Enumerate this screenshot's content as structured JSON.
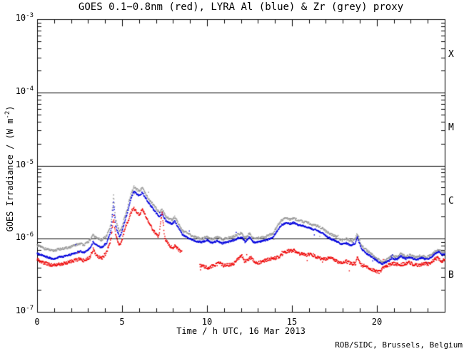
{
  "credit": "ROB/SIDC, Brussels, Belgium",
  "flare_classes": [
    "X",
    "M",
    "C",
    "B"
  ],
  "axes": {
    "x": {
      "title": "Time / h UTC, 16 Mar 2013",
      "tick_labels": [
        "0",
        "5",
        "10",
        "15",
        "20"
      ]
    },
    "y": {
      "title_pre": "GOES Irradiance / (W m",
      "title_sup": "-2",
      "title_post": ")",
      "ticks": [
        {
          "base": "10",
          "exp": "-3"
        },
        {
          "base": "10",
          "exp": "-4"
        },
        {
          "base": "10",
          "exp": "-5"
        },
        {
          "base": "10",
          "exp": "-6"
        },
        {
          "base": "10",
          "exp": "-7"
        }
      ]
    }
  },
  "chart_data": {
    "type": "scatter",
    "title": "GOES 0.1−0.8nm (red), LYRA Al (blue) & Zr (grey) proxy",
    "xlabel": "Time / h UTC, 16 Mar 2013",
    "ylabel": "GOES Irradiance / (W m-2)",
    "xlim": [
      0,
      24
    ],
    "ylim": [
      1e-07,
      0.001
    ],
    "y_scale": "log",
    "x_major_ticks": [
      0,
      5,
      10,
      15,
      20
    ],
    "x_minor_step": 1,
    "y_decade_ticks": [
      -3,
      -4,
      -5,
      -6,
      -7
    ],
    "hlines": [
      0.0001,
      1e-05,
      1e-06
    ],
    "flare_class_bands": [
      {
        "label": "X",
        "above": 0.0001
      },
      {
        "label": "M",
        "above": 1e-05
      },
      {
        "label": "C",
        "above": 1e-06
      },
      {
        "label": "B",
        "above": 1e-07
      }
    ],
    "axis_color": "#000000",
    "background": "#ffffff",
    "legend": "encoded in title colors",
    "series": [
      {
        "name": "GOES 0.1-0.8nm",
        "color": "#ee0000",
        "scatter_decades": 0.022,
        "gaps": [
          [
            8.52,
            9.56
          ]
        ],
        "keypoints": [
          [
            0.0,
            5.2e-07
          ],
          [
            0.4,
            4.7e-07
          ],
          [
            0.9,
            4.3e-07
          ],
          [
            1.3,
            4.5e-07
          ],
          [
            1.7,
            4.6e-07
          ],
          [
            2.1,
            5e-07
          ],
          [
            2.5,
            5.3e-07
          ],
          [
            2.8,
            5e-07
          ],
          [
            3.1,
            5.6e-07
          ],
          [
            3.3,
            7.2e-07
          ],
          [
            3.5,
            5.8e-07
          ],
          [
            3.8,
            5.4e-07
          ],
          [
            4.1,
            6.5e-07
          ],
          [
            4.35,
            1e-06
          ],
          [
            4.5,
            2e-06
          ],
          [
            4.62,
            1.1e-06
          ],
          [
            4.85,
            8.2e-07
          ],
          [
            5.0,
            9.5e-07
          ],
          [
            5.15,
            1.35e-06
          ],
          [
            5.3,
            1.6e-06
          ],
          [
            5.5,
            2.2e-06
          ],
          [
            5.67,
            2.65e-06
          ],
          [
            5.85,
            2.4e-06
          ],
          [
            6.0,
            2.1e-06
          ],
          [
            6.2,
            2.5e-06
          ],
          [
            6.35,
            2.1e-06
          ],
          [
            6.6,
            1.6e-06
          ],
          [
            6.8,
            1.35e-06
          ],
          [
            7.0,
            1.15e-06
          ],
          [
            7.15,
            1.05e-06
          ],
          [
            7.36,
            2.3e-06
          ],
          [
            7.5,
            1.05e-06
          ],
          [
            7.65,
            9e-07
          ],
          [
            7.8,
            8e-07
          ],
          [
            8.0,
            7.6e-07
          ],
          [
            8.15,
            7.9e-07
          ],
          [
            8.3,
            7.2e-07
          ],
          [
            8.52,
            6.6e-07
          ],
          [
            9.56,
            4.3e-07
          ],
          [
            9.8,
            4.2e-07
          ],
          [
            10.1,
            4e-07
          ],
          [
            10.4,
            4.3e-07
          ],
          [
            10.7,
            4.7e-07
          ],
          [
            11.0,
            4.3e-07
          ],
          [
            11.3,
            4.4e-07
          ],
          [
            11.6,
            4.6e-07
          ],
          [
            11.85,
            5.4e-07
          ],
          [
            12.05,
            5.9e-07
          ],
          [
            12.2,
            4.9e-07
          ],
          [
            12.45,
            5.2e-07
          ],
          [
            12.6,
            5.6e-07
          ],
          [
            12.8,
            4.7e-07
          ],
          [
            13.1,
            4.7e-07
          ],
          [
            13.4,
            5e-07
          ],
          [
            13.7,
            5.3e-07
          ],
          [
            14.0,
            5.4e-07
          ],
          [
            14.3,
            5.8e-07
          ],
          [
            14.6,
            6.6e-07
          ],
          [
            14.9,
            6.9e-07
          ],
          [
            15.2,
            6.8e-07
          ],
          [
            15.5,
            6.2e-07
          ],
          [
            15.8,
            6e-07
          ],
          [
            16.1,
            6.2e-07
          ],
          [
            16.4,
            5.7e-07
          ],
          [
            16.7,
            5.4e-07
          ],
          [
            17.0,
            5.3e-07
          ],
          [
            17.3,
            5.6e-07
          ],
          [
            17.6,
            5e-07
          ],
          [
            17.9,
            4.7e-07
          ],
          [
            18.2,
            4.9e-07
          ],
          [
            18.5,
            4.6e-07
          ],
          [
            18.75,
            4.5e-07
          ],
          [
            18.85,
            5.7e-07
          ],
          [
            19.05,
            4.4e-07
          ],
          [
            19.3,
            4.2e-07
          ],
          [
            19.6,
            3.9e-07
          ],
          [
            19.9,
            3.6e-07
          ],
          [
            20.15,
            3.5e-07
          ],
          [
            20.4,
            4e-07
          ],
          [
            20.7,
            4.4e-07
          ],
          [
            21.0,
            4.6e-07
          ],
          [
            21.3,
            4.4e-07
          ],
          [
            21.6,
            4.5e-07
          ],
          [
            21.9,
            4.7e-07
          ],
          [
            22.2,
            4.4e-07
          ],
          [
            22.5,
            4.3e-07
          ],
          [
            22.8,
            4.6e-07
          ],
          [
            23.1,
            4.5e-07
          ],
          [
            23.4,
            5.2e-07
          ],
          [
            23.6,
            5.5e-07
          ],
          [
            23.8,
            4.9e-07
          ],
          [
            24.0,
            5.2e-07
          ]
        ]
      },
      {
        "name": "LYRA Al proxy",
        "color": "#0000dd",
        "scatter_decades": 0.012,
        "gaps": [],
        "keypoints": [
          [
            0.0,
            6.3e-07
          ],
          [
            0.4,
            5.8e-07
          ],
          [
            0.9,
            5.3e-07
          ],
          [
            1.3,
            5.6e-07
          ],
          [
            1.7,
            5.8e-07
          ],
          [
            2.1,
            6.2e-07
          ],
          [
            2.5,
            6.7e-07
          ],
          [
            2.8,
            6.5e-07
          ],
          [
            3.1,
            7.4e-07
          ],
          [
            3.3,
            9e-07
          ],
          [
            3.5,
            8.2e-07
          ],
          [
            3.8,
            7.6e-07
          ],
          [
            4.1,
            8.8e-07
          ],
          [
            4.35,
            1.3e-06
          ],
          [
            4.5,
            3.1e-06
          ],
          [
            4.62,
            1.5e-06
          ],
          [
            4.85,
            1.05e-06
          ],
          [
            5.0,
            1.25e-06
          ],
          [
            5.15,
            1.7e-06
          ],
          [
            5.3,
            2.2e-06
          ],
          [
            5.5,
            3.4e-06
          ],
          [
            5.7,
            4.5e-06
          ],
          [
            5.85,
            4.1e-06
          ],
          [
            6.0,
            3.9e-06
          ],
          [
            6.2,
            4.3e-06
          ],
          [
            6.35,
            3.7e-06
          ],
          [
            6.6,
            3e-06
          ],
          [
            6.8,
            2.6e-06
          ],
          [
            7.0,
            2.25e-06
          ],
          [
            7.2,
            2e-06
          ],
          [
            7.36,
            2.2e-06
          ],
          [
            7.55,
            1.8e-06
          ],
          [
            7.75,
            1.65e-06
          ],
          [
            7.95,
            1.6e-06
          ],
          [
            8.1,
            1.75e-06
          ],
          [
            8.3,
            1.45e-06
          ],
          [
            8.55,
            1.15e-06
          ],
          [
            8.8,
            1.05e-06
          ],
          [
            9.1,
            9.7e-07
          ],
          [
            9.4,
            9.2e-07
          ],
          [
            9.7,
            9e-07
          ],
          [
            10.0,
            9.5e-07
          ],
          [
            10.3,
            8.8e-07
          ],
          [
            10.6,
            9.3e-07
          ],
          [
            10.9,
            8.7e-07
          ],
          [
            11.2,
            9e-07
          ],
          [
            11.5,
            9.4e-07
          ],
          [
            11.85,
            1.02e-06
          ],
          [
            12.05,
            1.06e-06
          ],
          [
            12.25,
            9e-07
          ],
          [
            12.5,
            1.05e-06
          ],
          [
            12.75,
            8.9e-07
          ],
          [
            13.0,
            9e-07
          ],
          [
            13.3,
            9.3e-07
          ],
          [
            13.6,
            9.7e-07
          ],
          [
            13.9,
            1.05e-06
          ],
          [
            14.15,
            1.3e-06
          ],
          [
            14.4,
            1.55e-06
          ],
          [
            14.65,
            1.62e-06
          ],
          [
            14.9,
            1.6e-06
          ],
          [
            15.1,
            1.65e-06
          ],
          [
            15.35,
            1.55e-06
          ],
          [
            15.6,
            1.5e-06
          ],
          [
            15.9,
            1.45e-06
          ],
          [
            16.2,
            1.35e-06
          ],
          [
            16.5,
            1.3e-06
          ],
          [
            16.8,
            1.2e-06
          ],
          [
            17.1,
            1.05e-06
          ],
          [
            17.4,
            9.7e-07
          ],
          [
            17.7,
            9e-07
          ],
          [
            17.95,
            8.3e-07
          ],
          [
            18.2,
            8.7e-07
          ],
          [
            18.5,
            8e-07
          ],
          [
            18.72,
            8.5e-07
          ],
          [
            18.85,
            1.05e-06
          ],
          [
            19.1,
            7.2e-07
          ],
          [
            19.4,
            6.3e-07
          ],
          [
            19.7,
            5.6e-07
          ],
          [
            20.0,
            5e-07
          ],
          [
            20.3,
            4.5e-07
          ],
          [
            20.6,
            4.8e-07
          ],
          [
            20.9,
            5.4e-07
          ],
          [
            21.2,
            5.2e-07
          ],
          [
            21.4,
            5.8e-07
          ],
          [
            21.7,
            5.3e-07
          ],
          [
            22.0,
            5.6e-07
          ],
          [
            22.3,
            5.1e-07
          ],
          [
            22.6,
            5.5e-07
          ],
          [
            22.9,
            5.2e-07
          ],
          [
            23.2,
            5.6e-07
          ],
          [
            23.45,
            6.3e-07
          ],
          [
            23.65,
            6.6e-07
          ],
          [
            23.85,
            6e-07
          ],
          [
            24.0,
            6.2e-07
          ]
        ]
      },
      {
        "name": "LYRA Zr proxy",
        "color": "#9a9a9a",
        "scatter_decades": 0.016,
        "gaps": [],
        "keypoints": [
          [
            0.0,
            8.1e-07
          ],
          [
            0.4,
            7.4e-07
          ],
          [
            0.9,
            6.8e-07
          ],
          [
            1.3,
            7.2e-07
          ],
          [
            1.7,
            7.4e-07
          ],
          [
            2.1,
            7.9e-07
          ],
          [
            2.5,
            8.6e-07
          ],
          [
            2.8,
            8.3e-07
          ],
          [
            3.1,
            9.5e-07
          ],
          [
            3.3,
            1.12e-06
          ],
          [
            3.5,
            1.02e-06
          ],
          [
            3.8,
            9.6e-07
          ],
          [
            4.1,
            1.1e-06
          ],
          [
            4.35,
            1.55e-06
          ],
          [
            4.5,
            3.9e-06
          ],
          [
            4.62,
            1.8e-06
          ],
          [
            4.85,
            1.25e-06
          ],
          [
            5.0,
            1.45e-06
          ],
          [
            5.15,
            1.95e-06
          ],
          [
            5.3,
            2.5e-06
          ],
          [
            5.5,
            3.9e-06
          ],
          [
            5.7,
            5.1e-06
          ],
          [
            5.85,
            4.7e-06
          ],
          [
            6.0,
            4.5e-06
          ],
          [
            6.2,
            4.9e-06
          ],
          [
            6.35,
            4.2e-06
          ],
          [
            6.6,
            3.4e-06
          ],
          [
            6.8,
            3e-06
          ],
          [
            7.0,
            2.6e-06
          ],
          [
            7.2,
            2.3e-06
          ],
          [
            7.36,
            2.5e-06
          ],
          [
            7.55,
            2.05e-06
          ],
          [
            7.75,
            1.9e-06
          ],
          [
            7.95,
            1.8e-06
          ],
          [
            8.1,
            2e-06
          ],
          [
            8.3,
            1.65e-06
          ],
          [
            8.55,
            1.3e-06
          ],
          [
            8.8,
            1.2e-06
          ],
          [
            9.1,
            1.1e-06
          ],
          [
            9.4,
            1.04e-06
          ],
          [
            9.7,
            1e-06
          ],
          [
            10.0,
            1.07e-06
          ],
          [
            10.3,
            9.9e-07
          ],
          [
            10.6,
            1.05e-06
          ],
          [
            10.9,
            9.8e-07
          ],
          [
            11.2,
            1.02e-06
          ],
          [
            11.5,
            1.06e-06
          ],
          [
            11.85,
            1.15e-06
          ],
          [
            12.05,
            1.2e-06
          ],
          [
            12.25,
            1.02e-06
          ],
          [
            12.5,
            1.18e-06
          ],
          [
            12.75,
            1e-06
          ],
          [
            13.0,
            1.02e-06
          ],
          [
            13.3,
            1.05e-06
          ],
          [
            13.6,
            1.1e-06
          ],
          [
            13.9,
            1.19e-06
          ],
          [
            14.15,
            1.5e-06
          ],
          [
            14.4,
            1.8e-06
          ],
          [
            14.65,
            1.9e-06
          ],
          [
            14.9,
            1.85e-06
          ],
          [
            15.1,
            1.9e-06
          ],
          [
            15.35,
            1.8e-06
          ],
          [
            15.6,
            1.72e-06
          ],
          [
            15.9,
            1.67e-06
          ],
          [
            16.2,
            1.55e-06
          ],
          [
            16.5,
            1.5e-06
          ],
          [
            16.8,
            1.38e-06
          ],
          [
            17.1,
            1.22e-06
          ],
          [
            17.4,
            1.12e-06
          ],
          [
            17.7,
            1.04e-06
          ],
          [
            17.95,
            9.5e-07
          ],
          [
            18.2,
            1e-06
          ],
          [
            18.5,
            9.2e-07
          ],
          [
            18.72,
            9.8e-07
          ],
          [
            18.85,
            1.18e-06
          ],
          [
            19.1,
            8e-07
          ],
          [
            19.4,
            7e-07
          ],
          [
            19.7,
            6.1e-07
          ],
          [
            20.0,
            5.4e-07
          ],
          [
            20.3,
            4.8e-07
          ],
          [
            20.6,
            5.2e-07
          ],
          [
            20.9,
            5.8e-07
          ],
          [
            21.2,
            5.6e-07
          ],
          [
            21.4,
            6.2e-07
          ],
          [
            21.7,
            5.7e-07
          ],
          [
            22.0,
            6e-07
          ],
          [
            22.3,
            5.5e-07
          ],
          [
            22.6,
            5.9e-07
          ],
          [
            22.9,
            5.6e-07
          ],
          [
            23.2,
            6e-07
          ],
          [
            23.45,
            6.8e-07
          ],
          [
            23.65,
            7.1e-07
          ],
          [
            23.85,
            6.4e-07
          ],
          [
            24.0,
            6.6e-07
          ]
        ]
      }
    ]
  }
}
